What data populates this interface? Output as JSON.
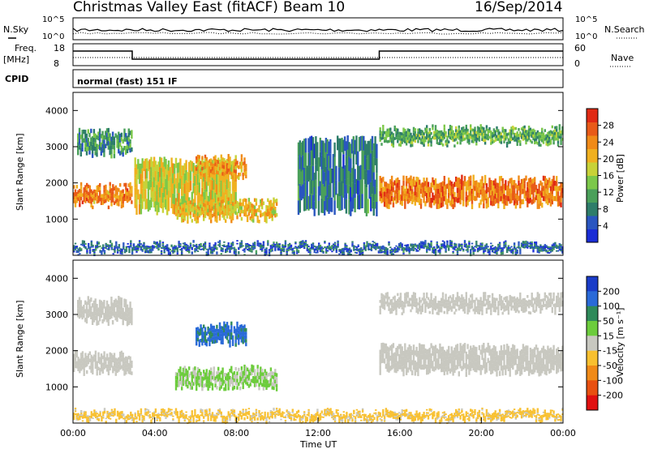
{
  "header": {
    "title": "Christmas Valley East (fitACF)",
    "beam": "Beam 10",
    "date": "16/Sep/2014"
  },
  "status_panels": {
    "nsky_label": "N.Sky",
    "nsearch_label": "N.Search",
    "nsky_ticks": [
      "10^5",
      "10^0"
    ],
    "nsearch_ticks": [
      "10^5",
      "10^0"
    ],
    "freq_label": "Freq.",
    "freq_unit": "[MHz]",
    "freq_ticks": [
      "18",
      "8"
    ],
    "nave_label": "Nave",
    "nave_ticks": [
      "60",
      "0"
    ],
    "cpid_label": "CPID",
    "cpid_text": "normal (fast) 151 IF"
  },
  "chart_data": [
    {
      "type": "heatmap",
      "name": "power",
      "ylabel": "Slant Range [km]",
      "xlabel": "",
      "yticks": [
        "1000",
        "2000",
        "3000",
        "4000"
      ],
      "ylim": [
        0,
        4500
      ],
      "colorbar": {
        "label": "Power [dB]",
        "ticks": [
          "4",
          "8",
          "12",
          "16",
          "20",
          "24",
          "28"
        ],
        "colors": [
          "#1a2dd6",
          "#2a56c0",
          "#2e7d6a",
          "#4aa05a",
          "#7cc84a",
          "#c8d238",
          "#f0b020",
          "#f08a18",
          "#e85a18",
          "#e02a14"
        ]
      },
      "echo_bands": [
        {
          "t0": 0.0,
          "t1": 2.9,
          "r0": 1400,
          "r1": 1900,
          "power": 24
        },
        {
          "t0": 0.2,
          "t1": 2.9,
          "r0": 2800,
          "r1": 3400,
          "power": 10
        },
        {
          "t0": 3.0,
          "t1": 8.0,
          "r0": 1200,
          "r1": 2600,
          "power": 18
        },
        {
          "t0": 6.0,
          "t1": 8.5,
          "r0": 2200,
          "r1": 2700,
          "power": 22
        },
        {
          "t0": 5.0,
          "t1": 10.0,
          "r0": 1000,
          "r1": 1500,
          "power": 20
        },
        {
          "t0": 11.0,
          "t1": 14.9,
          "r0": 1200,
          "r1": 3200,
          "power": 8
        },
        {
          "t0": 15.0,
          "t1": 24.0,
          "r0": 1400,
          "r1": 2100,
          "power": 25
        },
        {
          "t0": 15.0,
          "t1": 24.0,
          "r0": 3100,
          "r1": 3500,
          "power": 12
        },
        {
          "t0": 0.0,
          "t1": 24.0,
          "r0": 100,
          "r1": 300,
          "power": 6
        }
      ]
    },
    {
      "type": "heatmap",
      "name": "velocity",
      "ylabel": "Slant Range [km]",
      "xlabel": "Time UT",
      "yticks": [
        "1000",
        "2000",
        "3000",
        "4000"
      ],
      "ylim": [
        0,
        4500
      ],
      "xticks": [
        "00:00",
        "04:00",
        "08:00",
        "12:00",
        "16:00",
        "20:00",
        "00:00"
      ],
      "xlim": [
        0,
        24
      ],
      "colorbar": {
        "label": "Velocity [m s⁻¹]",
        "ticks": [
          "200",
          "100",
          "50",
          "15",
          "-15",
          "-50",
          "-100",
          "-200"
        ],
        "colors": [
          "#1a3cc8",
          "#2a6ad8",
          "#2f8a5a",
          "#6ccc3c",
          "#c8c8c0",
          "#f8c030",
          "#f08a18",
          "#e85010",
          "#e01010"
        ]
      },
      "echo_bands": [
        {
          "t0": 0.0,
          "t1": 2.9,
          "r0": 1400,
          "r1": 1900,
          "vel": 0
        },
        {
          "t0": 0.2,
          "t1": 2.9,
          "r0": 2800,
          "r1": 3400,
          "vel": 0
        },
        {
          "t0": 6.0,
          "t1": 8.5,
          "r0": 2200,
          "r1": 2700,
          "vel": 150
        },
        {
          "t0": 5.0,
          "t1": 10.0,
          "r0": 1000,
          "r1": 1500,
          "vel": 35
        },
        {
          "t0": 15.0,
          "t1": 24.0,
          "r0": 1400,
          "r1": 2100,
          "vel": 0
        },
        {
          "t0": 15.0,
          "t1": 24.0,
          "r0": 3100,
          "r1": 3500,
          "vel": 0
        },
        {
          "t0": 0.0,
          "t1": 24.0,
          "r0": 100,
          "r1": 300,
          "vel": -40
        }
      ]
    }
  ]
}
